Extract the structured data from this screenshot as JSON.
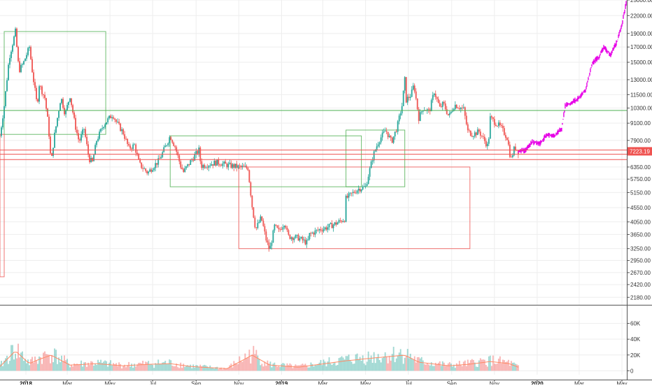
{
  "chart_data": {
    "type": "candlestick",
    "price_axis": {
      "scale": "log",
      "range": [
        2050,
        25000
      ],
      "ticks": [
        "25000.00",
        "22000.00",
        "19000.00",
        "17000.00",
        "15000.00",
        "13000.00",
        "11500.00",
        "10300.00",
        "9100.00",
        "7900.00",
        "6350.00",
        "5750.00",
        "5150.00",
        "4550.00",
        "4050.00",
        "3650.00",
        "3250.00",
        "2950.00",
        "2670.00",
        "2420.00",
        "2180.00"
      ],
      "current_price_label": "7223.19"
    },
    "time_axis": {
      "range": [
        "2017-11-25",
        "2020-05-08"
      ],
      "labels": [
        {
          "text": "2018",
          "date": "2018-01-01",
          "bold": true
        },
        {
          "text": "Mar",
          "date": "2018-03-01"
        },
        {
          "text": "May",
          "date": "2018-05-01"
        },
        {
          "text": "Jul",
          "date": "2018-07-01"
        },
        {
          "text": "Sep",
          "date": "2018-09-01"
        },
        {
          "text": "Nov",
          "date": "2018-11-01"
        },
        {
          "text": "2019",
          "date": "2019-01-01",
          "bold": true
        },
        {
          "text": "Mar",
          "date": "2019-03-01"
        },
        {
          "text": "May",
          "date": "2019-05-01"
        },
        {
          "text": "Jul",
          "date": "2019-07-01"
        },
        {
          "text": "Sep",
          "date": "2019-09-01"
        },
        {
          "text": "Nov",
          "date": "2019-11-01"
        },
        {
          "text": "2020",
          "date": "2020-01-01",
          "bold": true
        },
        {
          "text": "Mar",
          "date": "2020-03-01"
        },
        {
          "text": "May",
          "date": "2020-05-01"
        }
      ]
    },
    "volume_axis": {
      "range": [
        -5000,
        80000
      ],
      "ticks": [
        {
          "label": "60K",
          "value": 60000
        },
        {
          "label": "40K",
          "value": 40000
        },
        {
          "label": "20K",
          "value": 20000
        },
        {
          "label": "0",
          "value": 0
        }
      ]
    },
    "price_path": [
      [
        "2017-11-25",
        8200
      ],
      [
        "2017-12-01",
        10500
      ],
      [
        "2017-12-08",
        15500
      ],
      [
        "2017-12-17",
        19300
      ],
      [
        "2017-12-22",
        14000
      ],
      [
        "2017-12-28",
        14800
      ],
      [
        "2018-01-06",
        17000
      ],
      [
        "2018-01-10",
        14000
      ],
      [
        "2018-01-17",
        10500
      ],
      [
        "2018-01-20",
        12500
      ],
      [
        "2018-01-28",
        11200
      ],
      [
        "2018-02-02",
        9000
      ],
      [
        "2018-02-06",
        6500
      ],
      [
        "2018-02-10",
        8000
      ],
      [
        "2018-02-20",
        11300
      ],
      [
        "2018-02-26",
        9800
      ],
      [
        "2018-03-05",
        11400
      ],
      [
        "2018-03-12",
        9000
      ],
      [
        "2018-03-18",
        7800
      ],
      [
        "2018-03-25",
        8700
      ],
      [
        "2018-04-01",
        6800
      ],
      [
        "2018-04-06",
        6600
      ],
      [
        "2018-04-12",
        7900
      ],
      [
        "2018-04-22",
        9000
      ],
      [
        "2018-05-05",
        9800
      ],
      [
        "2018-05-10",
        9200
      ],
      [
        "2018-05-20",
        8400
      ],
      [
        "2018-05-28",
        7400
      ],
      [
        "2018-06-05",
        7600
      ],
      [
        "2018-06-12",
        6500
      ],
      [
        "2018-06-24",
        6050
      ],
      [
        "2018-07-01",
        6350
      ],
      [
        "2018-07-10",
        6700
      ],
      [
        "2018-07-18",
        7400
      ],
      [
        "2018-07-26",
        8200
      ],
      [
        "2018-08-02",
        7500
      ],
      [
        "2018-08-10",
        6400
      ],
      [
        "2018-08-14",
        6100
      ],
      [
        "2018-08-25",
        6700
      ],
      [
        "2018-09-05",
        7300
      ],
      [
        "2018-09-08",
        6400
      ],
      [
        "2018-09-20",
        6500
      ],
      [
        "2018-10-01",
        6600
      ],
      [
        "2018-10-15",
        6450
      ],
      [
        "2018-11-01",
        6350
      ],
      [
        "2018-11-14",
        6300
      ],
      [
        "2018-11-20",
        4600
      ],
      [
        "2018-11-25",
        3800
      ],
      [
        "2018-12-03",
        4200
      ],
      [
        "2018-12-10",
        3500
      ],
      [
        "2018-12-15",
        3200
      ],
      [
        "2018-12-22",
        3900
      ],
      [
        "2018-12-28",
        3750
      ],
      [
        "2019-01-06",
        4050
      ],
      [
        "2019-01-10",
        3600
      ],
      [
        "2019-01-25",
        3550
      ],
      [
        "2019-02-07",
        3400
      ],
      [
        "2019-02-10",
        3650
      ],
      [
        "2019-02-24",
        3800
      ],
      [
        "2019-03-05",
        3850
      ],
      [
        "2019-03-20",
        4000
      ],
      [
        "2019-04-01",
        4150
      ],
      [
        "2019-04-03",
        4900
      ],
      [
        "2019-04-20",
        5300
      ],
      [
        "2019-05-01",
        5400
      ],
      [
        "2019-05-12",
        7000
      ],
      [
        "2019-05-20",
        7900
      ],
      [
        "2019-05-30",
        8600
      ],
      [
        "2019-06-07",
        7800
      ],
      [
        "2019-06-15",
        8800
      ],
      [
        "2019-06-22",
        10500
      ],
      [
        "2019-06-26",
        13000
      ],
      [
        "2019-06-28",
        11000
      ],
      [
        "2019-07-05",
        11500
      ],
      [
        "2019-07-09",
        12500
      ],
      [
        "2019-07-16",
        9500
      ],
      [
        "2019-07-22",
        10300
      ],
      [
        "2019-07-31",
        10000
      ],
      [
        "2019-08-07",
        11800
      ],
      [
        "2019-08-15",
        10300
      ],
      [
        "2019-08-20",
        10700
      ],
      [
        "2019-08-28",
        9600
      ],
      [
        "2019-09-05",
        10600
      ],
      [
        "2019-09-18",
        10200
      ],
      [
        "2019-09-24",
        8500
      ],
      [
        "2019-10-01",
        8300
      ],
      [
        "2019-10-10",
        8500
      ],
      [
        "2019-10-23",
        7500
      ],
      [
        "2019-10-26",
        9500
      ],
      [
        "2019-11-01",
        9200
      ],
      [
        "2019-11-10",
        8800
      ],
      [
        "2019-11-20",
        8000
      ],
      [
        "2019-11-22",
        7200
      ],
      [
        "2019-11-25",
        6800
      ],
      [
        "2019-11-30",
        7500
      ],
      [
        "2019-12-05",
        7200
      ]
    ],
    "projection_path": [
      [
        "2019-12-05",
        7200
      ],
      [
        "2019-12-15",
        7300
      ],
      [
        "2019-12-25",
        7800
      ],
      [
        "2020-01-05",
        7700
      ],
      [
        "2020-01-15",
        8300
      ],
      [
        "2020-01-25",
        8200
      ],
      [
        "2020-02-05",
        8700
      ],
      [
        "2020-02-10",
        10500
      ],
      [
        "2020-02-20",
        10800
      ],
      [
        "2020-03-01",
        11200
      ],
      [
        "2020-03-10",
        12000
      ],
      [
        "2020-03-20",
        15000
      ],
      [
        "2020-03-28",
        15500
      ],
      [
        "2020-04-05",
        17000
      ],
      [
        "2020-04-15",
        16000
      ],
      [
        "2020-04-25",
        18000
      ],
      [
        "2020-05-02",
        21000
      ],
      [
        "2020-05-08",
        25000
      ]
    ],
    "volume_profile": [
      [
        "2017-11-25",
        6000
      ],
      [
        "2017-12-17",
        28000
      ],
      [
        "2018-01-06",
        10000
      ],
      [
        "2018-01-17",
        15000
      ],
      [
        "2018-02-06",
        22000
      ],
      [
        "2018-03-05",
        8000
      ],
      [
        "2018-04-12",
        10000
      ],
      [
        "2018-05-20",
        7000
      ],
      [
        "2018-06-24",
        9000
      ],
      [
        "2018-07-26",
        10000
      ],
      [
        "2018-08-25",
        6000
      ],
      [
        "2018-10-15",
        3000
      ],
      [
        "2018-11-20",
        22000
      ],
      [
        "2018-12-15",
        8000
      ],
      [
        "2019-01-25",
        5000
      ],
      [
        "2019-04-03",
        14000
      ],
      [
        "2019-05-12",
        18000
      ],
      [
        "2019-06-26",
        22000
      ],
      [
        "2019-07-16",
        12000
      ],
      [
        "2019-08-28",
        7000
      ],
      [
        "2019-09-24",
        9000
      ],
      [
        "2019-10-26",
        13000
      ],
      [
        "2019-11-22",
        10000
      ],
      [
        "2019-12-05",
        5000
      ]
    ],
    "horizontal_levels": [
      {
        "price": 10100,
        "color": "#4caf50"
      },
      {
        "price": 7300,
        "color": "#ef5350"
      },
      {
        "price": 7050,
        "color": "#ef5350"
      },
      {
        "price": 6750,
        "color": "#ef5350"
      }
    ],
    "boxes": [
      {
        "start": "2017-12-01",
        "end": "2018-04-25",
        "low": 8300,
        "high": 19300,
        "color": "#4caf50"
      },
      {
        "start": "2018-07-26",
        "end": "2019-04-25",
        "low": 5400,
        "high": 8200,
        "color": "#4caf50"
      },
      {
        "start": "2018-11-01",
        "end": "2019-09-27",
        "low": 3250,
        "high": 6350,
        "color": "#ef5350"
      },
      {
        "start": "2017-11-25",
        "end": "2017-12-01",
        "low": 2580,
        "high": 8300,
        "color": "#ef5350"
      },
      {
        "start": "2019-04-03",
        "end": "2019-06-26",
        "low": 5400,
        "high": 8600,
        "color": "#4caf50"
      }
    ],
    "colors": {
      "up": "#26a69a",
      "down": "#ef5350",
      "projection": "#e600e6",
      "current_price_tag": "#ef5350",
      "grid": "#eeeeee"
    }
  }
}
